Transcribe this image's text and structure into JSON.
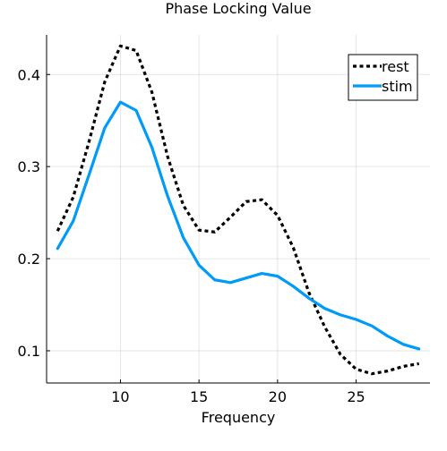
{
  "chart_data": {
    "type": "line",
    "title": "Phase Locking Value",
    "xlabel": "Frequency",
    "ylabel": "",
    "xlim": [
      5.3,
      29.7
    ],
    "ylim": [
      0.065,
      0.443
    ],
    "x_ticks": [
      10,
      15,
      20,
      25
    ],
    "y_ticks": [
      0.1,
      0.2,
      0.3,
      0.4
    ],
    "x_tick_labels": [
      "10",
      "15",
      "20",
      "25"
    ],
    "y_tick_labels": [
      "0.1",
      "0.2",
      "0.3",
      "0.4"
    ],
    "grid": true,
    "legend_position": "top-right",
    "x": [
      6,
      7,
      8,
      9,
      10,
      11,
      12,
      13,
      14,
      15,
      16,
      17,
      18,
      19,
      20,
      21,
      22,
      23,
      24,
      25,
      26,
      27,
      28,
      29
    ],
    "series": [
      {
        "name": "rest",
        "style": "dotted",
        "color": "#000000",
        "values": [
          0.23,
          0.267,
          0.327,
          0.392,
          0.431,
          0.426,
          0.381,
          0.311,
          0.258,
          0.231,
          0.229,
          0.245,
          0.262,
          0.264,
          0.247,
          0.212,
          0.163,
          0.126,
          0.096,
          0.08,
          0.075,
          0.078,
          0.083,
          0.086
        ]
      },
      {
        "name": "stim",
        "style": "solid",
        "color": "#009af9",
        "values": [
          0.211,
          0.241,
          0.291,
          0.342,
          0.37,
          0.361,
          0.321,
          0.268,
          0.223,
          0.193,
          0.177,
          0.174,
          0.179,
          0.184,
          0.181,
          0.17,
          0.157,
          0.146,
          0.139,
          0.134,
          0.127,
          0.116,
          0.107,
          0.102
        ]
      }
    ]
  }
}
